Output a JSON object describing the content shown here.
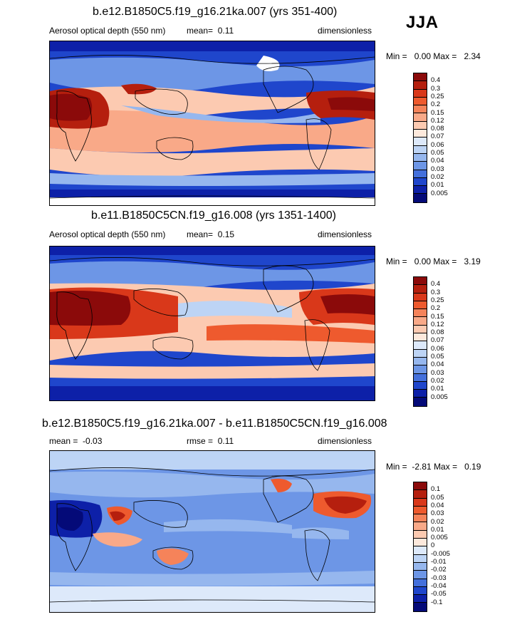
{
  "season": "JJA",
  "panels": [
    {
      "title": "b.e12.B1850C5.f19_g16.21ka.007 (yrs 351-400)",
      "variable": "Aerosol optical depth (550 nm)",
      "mean_label": "mean=",
      "mean_value": "0.11",
      "units": "dimensionless",
      "min_label": "Min =",
      "min_value": "0.00",
      "max_label": "Max =",
      "max_value": "2.34",
      "colorbar": {
        "labels": [
          "0.4",
          "0.3",
          "0.25",
          "0.2",
          "0.15",
          "0.12",
          "0.08",
          "0.07",
          "0.06",
          "0.05",
          "0.04",
          "0.03",
          "0.02",
          "0.01",
          "0.005"
        ],
        "colors": [
          "#8b0a0a",
          "#b51f0e",
          "#d9381a",
          "#ee5a2e",
          "#f5835a",
          "#f9a988",
          "#fccab1",
          "#fde9dc",
          "#dde9fa",
          "#bdd4f5",
          "#96b7ee",
          "#6d96e6",
          "#4470dc",
          "#1f46cc",
          "#0d20a8",
          "#040a78"
        ]
      },
      "map_style": "lgm"
    },
    {
      "title": "b.e11.B1850C5CN.f19_g16.008 (yrs 1351-1400)",
      "variable": "Aerosol optical depth (550 nm)",
      "mean_label": "mean=",
      "mean_value": "0.15",
      "units": "dimensionless",
      "min_label": "Min =",
      "min_value": "0.00",
      "max_label": "Max =",
      "max_value": "3.19",
      "colorbar": {
        "labels": [
          "0.4",
          "0.3",
          "0.25",
          "0.2",
          "0.15",
          "0.12",
          "0.08",
          "0.07",
          "0.06",
          "0.05",
          "0.04",
          "0.03",
          "0.02",
          "0.01",
          "0.005"
        ],
        "colors": [
          "#8b0a0a",
          "#b51f0e",
          "#d9381a",
          "#ee5a2e",
          "#f5835a",
          "#f9a988",
          "#fccab1",
          "#fde9dc",
          "#dde9fa",
          "#bdd4f5",
          "#96b7ee",
          "#6d96e6",
          "#4470dc",
          "#1f46cc",
          "#0d20a8",
          "#040a78"
        ]
      },
      "map_style": "pi"
    },
    {
      "title": "b.e12.B1850C5.f19_g16.21ka.007 - b.e11.B1850C5CN.f19_g16.008",
      "mean_label": "mean =",
      "mean_value": "-0.03",
      "rmse_label": "rmse =",
      "rmse_value": "0.11",
      "units": "dimensionless",
      "min_label": "Min =",
      "min_value": "-2.81",
      "max_label": "Max =",
      "max_value": "0.19",
      "colorbar": {
        "labels": [
          "0.1",
          "0.05",
          "0.04",
          "0.03",
          "0.02",
          "0.01",
          "0.005",
          "0",
          "-0.005",
          "-0.01",
          "-0.02",
          "-0.03",
          "-0.04",
          "-0.05",
          "-0.1"
        ],
        "colors": [
          "#8b0a0a",
          "#b51f0e",
          "#d9381a",
          "#ee5a2e",
          "#f5835a",
          "#f9a988",
          "#fccab1",
          "#fde9dc",
          "#dde9fa",
          "#bdd4f5",
          "#96b7ee",
          "#6d96e6",
          "#4470dc",
          "#1f46cc",
          "#0d20a8",
          "#040a78"
        ]
      },
      "map_style": "diff"
    }
  ]
}
